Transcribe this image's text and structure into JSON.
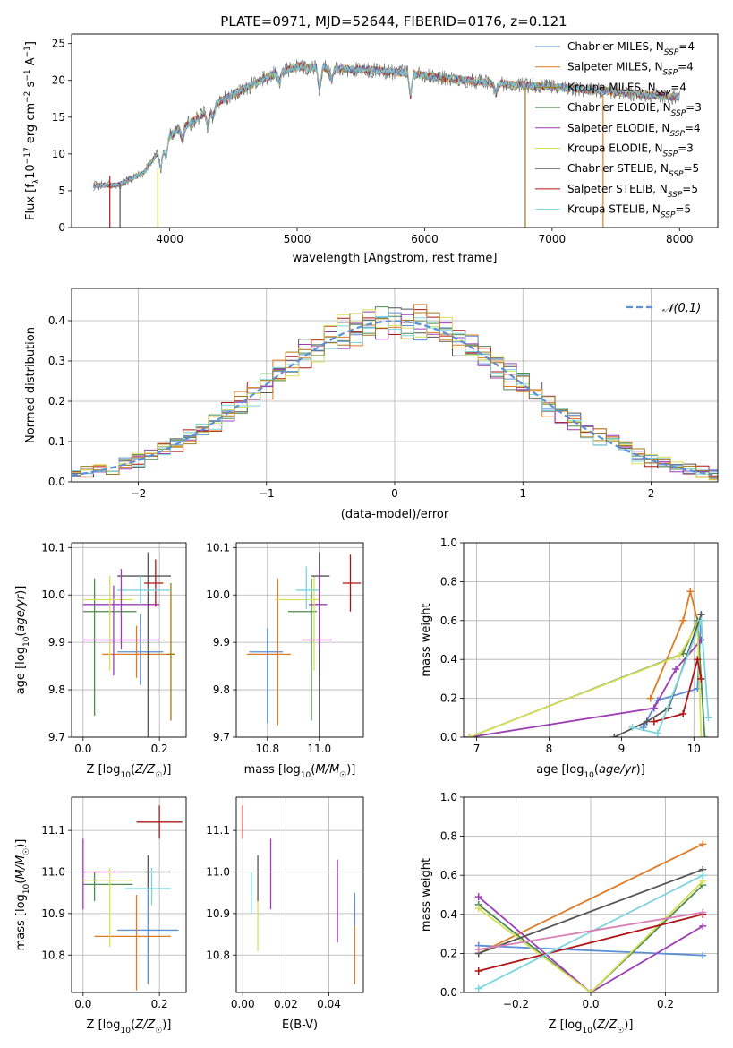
{
  "title": "PLATE=0971, MJD=52644, FIBERID=0176, z=0.121",
  "series": [
    {
      "name": "Chabrier MILES",
      "nssp": "4",
      "color": "#5b8fd6"
    },
    {
      "name": "Salpeter MILES",
      "nssp": "4",
      "color": "#e07b24"
    },
    {
      "name": "Kroupa MILES",
      "nssp": "4",
      "color": "#a07a1a"
    },
    {
      "name": "Chabrier ELODIE",
      "nssp": "3",
      "color": "#4f8a4f"
    },
    {
      "name": "Salpeter ELODIE",
      "nssp": "4",
      "color": "#9c3fb5"
    },
    {
      "name": "Kroupa ELODIE",
      "nssp": "3",
      "color": "#d8e05a"
    },
    {
      "name": "Chabrier STELIB",
      "nssp": "5",
      "color": "#555555"
    },
    {
      "name": "Salpeter STELIB",
      "nssp": "5",
      "color": "#b01515"
    },
    {
      "name": "Kroupa STELIB",
      "nssp": "5",
      "color": "#7ad6dc"
    }
  ],
  "chart_data": [
    {
      "type": "line",
      "id": "spectrum",
      "title": "PLATE=0971, MJD=52644, FIBERID=0176, z=0.121",
      "xlabel": "wavelength [Angstrom, rest frame]",
      "ylabel": "Flux [f_λ 10^-17 erg cm^-2 s^-1 A^-1]",
      "xlim": [
        3230,
        8300
      ],
      "ylim": [
        0,
        26.3
      ],
      "xticks": [
        4000,
        5000,
        6000,
        7000,
        8000
      ],
      "yticks": [
        0,
        5,
        10,
        15,
        20,
        25
      ],
      "grid": false,
      "legend": "right",
      "continuum": {
        "x": [
          3400,
          3600,
          3800,
          4000,
          4200,
          4400,
          4600,
          4800,
          5000,
          5300,
          5600,
          5900,
          6200,
          6500,
          6800,
          7100,
          7400,
          7700,
          8000
        ],
        "y": [
          5.7,
          5.8,
          7.5,
          12.5,
          14.6,
          17.2,
          19.0,
          20.8,
          21.8,
          21.6,
          21.4,
          20.9,
          20.2,
          19.7,
          19.3,
          19.0,
          18.6,
          18.1,
          17.7
        ]
      }
    },
    {
      "type": "histogram",
      "id": "residuals",
      "xlabel": "(data-model)/error",
      "ylabel": "Normed distribution",
      "xlim": [
        -2.52,
        2.52
      ],
      "ylim": [
        0,
        0.48
      ],
      "xticks": [
        -2,
        -1,
        0,
        1,
        2
      ],
      "yticks": [
        0,
        0.1,
        0.2,
        0.3,
        0.4
      ],
      "grid": true,
      "legend": "top-right",
      "reference_curve": {
        "label": "𝒩(0,1)",
        "mean": 0,
        "sigma": 1,
        "color": "#5b8fd6"
      },
      "bin_width": 0.1
    },
    {
      "type": "errorbar",
      "id": "age_vs_Z",
      "xlabel": "Z [log10(Z/Z☉)]",
      "ylabel": "age [log10(age/yr)]",
      "xlim": [
        -0.03,
        0.27
      ],
      "ylim": [
        9.7,
        10.11
      ],
      "xticks": [
        0.0,
        0.2
      ],
      "yticks": [
        9.7,
        9.8,
        9.9,
        10.0,
        10.1
      ],
      "grid": true,
      "points": [
        {
          "x": 0.15,
          "xerr": [
            0.06,
            0.06
          ],
          "y": 9.88,
          "yerr": [
            0.07,
            0.08
          ],
          "c": 0
        },
        {
          "x": 0.14,
          "xerr": [
            0.09,
            0.1
          ],
          "y": 9.875,
          "yerr": [
            0.05,
            0.06
          ],
          "c": 1
        },
        {
          "x": 0.23,
          "xerr": [
            0.01,
            0.01
          ],
          "y": 9.875,
          "yerr": [
            0.14,
            0.15
          ],
          "c": 2
        },
        {
          "x": 0.03,
          "xerr": [
            0.03,
            0.11
          ],
          "y": 9.965,
          "yerr": [
            0.22,
            0.07
          ],
          "c": 3
        },
        {
          "x": 0.08,
          "xerr": [
            0.08,
            0.12
          ],
          "y": 9.98,
          "yerr": [
            0.15,
            0.04
          ],
          "c": 4
        },
        {
          "x": 0.07,
          "xerr": [
            0.07,
            0.06
          ],
          "y": 9.99,
          "yerr": [
            0.15,
            0.05
          ],
          "c": 5
        },
        {
          "x": 0.17,
          "xerr": [
            0.08,
            0.06
          ],
          "y": 10.04,
          "yerr": [
            0.34,
            0.05
          ],
          "c": 6
        },
        {
          "x": 0.19,
          "xerr": [
            0.03,
            0.02
          ],
          "y": 10.025,
          "yerr": [
            0.05,
            0.05
          ],
          "c": 7
        },
        {
          "x": 0.15,
          "xerr": [
            0.06,
            0.08
          ],
          "y": 10.01,
          "yerr": [
            0.03,
            0.03
          ],
          "c": 8
        },
        {
          "x": 0.1,
          "xerr": [
            0.1,
            0.1
          ],
          "y": 9.905,
          "yerr": [
            0.02,
            0.15
          ],
          "c": 4
        }
      ]
    },
    {
      "type": "errorbar",
      "id": "age_vs_mass",
      "xlabel": "mass [log10(M/M☉)]",
      "ylabel": "",
      "xlim": [
        10.68,
        11.17
      ],
      "ylim": [
        9.7,
        10.11
      ],
      "xticks": [
        10.8,
        11.0
      ],
      "yticks": [
        9.7,
        9.8,
        9.9,
        10.0,
        10.1
      ],
      "grid": true,
      "points": [
        {
          "x": 10.8,
          "xerr": [
            0.07,
            0.06
          ],
          "y": 9.88,
          "yerr": [
            0.15,
            0.05
          ],
          "c": 0
        },
        {
          "x": 10.84,
          "xerr": [
            0.12,
            0.05
          ],
          "y": 9.875,
          "yerr": [
            0.15,
            0.16
          ],
          "c": 1
        },
        {
          "x": 10.97,
          "xerr": [
            0.09,
            0.02
          ],
          "y": 9.965,
          "yerr": [
            0.23,
            0.07
          ],
          "c": 3
        },
        {
          "x": 11.0,
          "xerr": [
            0.04,
            0.03
          ],
          "y": 9.98,
          "yerr": [
            0.15,
            0.04
          ],
          "c": 4
        },
        {
          "x": 10.98,
          "xerr": [
            0.15,
            0.02
          ],
          "y": 9.99,
          "yerr": [
            0.15,
            0.05
          ],
          "c": 5
        },
        {
          "x": 11.0,
          "xerr": [
            0.03,
            0.04
          ],
          "y": 10.04,
          "yerr": [
            0.34,
            0.05
          ],
          "c": 6
        },
        {
          "x": 11.12,
          "xerr": [
            0.03,
            0.04
          ],
          "y": 10.025,
          "yerr": [
            0.06,
            0.06
          ],
          "c": 7
        },
        {
          "x": 10.95,
          "xerr": [
            0.04,
            0.05
          ],
          "y": 10.01,
          "yerr": [
            0.04,
            0.05
          ],
          "c": 8
        },
        {
          "x": 11.0,
          "xerr": [
            0.07,
            0.05
          ],
          "y": 9.905,
          "yerr": [
            0.02,
            0.15
          ],
          "c": 4
        }
      ]
    },
    {
      "type": "line",
      "id": "massweight_vs_age",
      "xlabel": "age [log10(age/yr)]",
      "ylabel": "mass weight",
      "xlim": [
        6.82,
        10.33
      ],
      "ylim": [
        0,
        1.0
      ],
      "xticks": [
        7,
        8,
        9,
        10
      ],
      "yticks": [
        0,
        0.2,
        0.4,
        0.6,
        0.8,
        1.0
      ],
      "grid": true,
      "series": [
        {
          "c": 0,
          "x": [
            9.3,
            9.5,
            10.05,
            10.1
          ],
          "y": [
            0.05,
            0.19,
            0.25,
            0.63
          ]
        },
        {
          "c": 1,
          "x": [
            9.4,
            9.85,
            9.95,
            10.05
          ],
          "y": [
            0.2,
            0.6,
            0.75,
            0.6
          ]
        },
        {
          "c": 3,
          "x": [
            6.9,
            9.85,
            10.05,
            10.15
          ],
          "y": [
            0.0,
            0.43,
            0.6,
            0.0
          ]
        },
        {
          "c": 4,
          "x": [
            6.9,
            9.45,
            9.75,
            10.1
          ],
          "y": [
            0.0,
            0.15,
            0.35,
            0.5
          ]
        },
        {
          "c": 5,
          "x": [
            6.9,
            9.8,
            10.05,
            10.1
          ],
          "y": [
            0.0,
            0.42,
            0.58,
            0.0
          ]
        },
        {
          "c": 6,
          "x": [
            8.9,
            9.35,
            9.65,
            10.1
          ],
          "y": [
            0.0,
            0.08,
            0.15,
            0.63
          ]
        },
        {
          "c": 7,
          "x": [
            9.45,
            9.85,
            10.05,
            10.1
          ],
          "y": [
            0.08,
            0.12,
            0.4,
            0.3
          ]
        },
        {
          "c": 8,
          "x": [
            9.15,
            9.5,
            10.1,
            10.2
          ],
          "y": [
            0.05,
            0.02,
            0.6,
            0.1
          ]
        }
      ]
    },
    {
      "type": "errorbar",
      "id": "mass_vs_Z",
      "xlabel": "Z [log10(Z/Z☉)]",
      "ylabel": "mass [log10(M/M☉)]",
      "xlim": [
        -0.03,
        0.27
      ],
      "ylim": [
        10.71,
        11.18
      ],
      "xticks": [
        0.0,
        0.2
      ],
      "yticks": [
        10.8,
        10.9,
        11.0,
        11.1
      ],
      "grid": true,
      "points": [
        {
          "x": 0.17,
          "xerr": [
            0.08,
            0.08
          ],
          "y": 10.86,
          "yerr": [
            0.13,
            0.1
          ],
          "c": 0
        },
        {
          "x": 0.14,
          "xerr": [
            0.11,
            0.09
          ],
          "y": 10.845,
          "yerr": [
            0.13,
            0.1
          ],
          "c": 1
        },
        {
          "x": 0.03,
          "xerr": [
            0.03,
            0.1
          ],
          "y": 10.97,
          "yerr": [
            0.04,
            0.03
          ],
          "c": 3
        },
        {
          "x": 0.0,
          "xerr": [
            0.0,
            0.09
          ],
          "y": 11.0,
          "yerr": [
            0.09,
            0.08
          ],
          "c": 4
        },
        {
          "x": 0.07,
          "xerr": [
            0.07,
            0.06
          ],
          "y": 10.98,
          "yerr": [
            0.16,
            0.03
          ],
          "c": 5
        },
        {
          "x": 0.17,
          "xerr": [
            0.08,
            0.06
          ],
          "y": 11.0,
          "yerr": [
            0.04,
            0.04
          ],
          "c": 6
        },
        {
          "x": 0.2,
          "xerr": [
            0.06,
            0.06
          ],
          "y": 11.12,
          "yerr": [
            0.04,
            0.04
          ],
          "c": 7
        },
        {
          "x": 0.18,
          "xerr": [
            0.07,
            0.05
          ],
          "y": 10.96,
          "yerr": [
            0.04,
            0.05
          ],
          "c": 8
        }
      ]
    },
    {
      "type": "errorbar",
      "id": "mass_vs_ebv",
      "xlabel": "E(B-V)",
      "ylabel": "",
      "xlim": [
        -0.003,
        0.056
      ],
      "ylim": [
        10.71,
        11.18
      ],
      "xticks": [
        0.0,
        0.02,
        0.04
      ],
      "yticks": [
        10.8,
        10.9,
        11.0,
        11.1
      ],
      "grid": true,
      "points": [
        {
          "x": 0.0,
          "y": 11.12,
          "yerr": [
            0.04,
            0.04
          ],
          "c": 7
        },
        {
          "x": 0.004,
          "y": 10.95,
          "yerr": [
            0.05,
            0.05
          ],
          "c": 8
        },
        {
          "x": 0.007,
          "y": 10.97,
          "yerr": [
            0.04,
            0.07
          ],
          "c": 6
        },
        {
          "x": 0.007,
          "y": 10.87,
          "yerr": [
            0.06,
            0.06
          ],
          "c": 5
        },
        {
          "x": 0.013,
          "y": 11.0,
          "yerr": [
            0.09,
            0.08
          ],
          "c": 4
        },
        {
          "x": 0.044,
          "y": 10.93,
          "yerr": [
            0.1,
            0.1
          ],
          "c": 4
        },
        {
          "x": 0.052,
          "y": 10.84,
          "yerr": [
            0.11,
            0.1
          ],
          "c": 1
        },
        {
          "x": 0.052,
          "y": 10.91,
          "yerr": [
            0.04,
            0.04
          ],
          "c": 0
        }
      ]
    },
    {
      "type": "line",
      "id": "massweight_vs_Z",
      "xlabel": "Z [log10(Z/Z☉)]",
      "ylabel": "mass weight",
      "xlim": [
        -0.34,
        0.34
      ],
      "ylim": [
        0,
        1.0
      ],
      "xticks": [
        -0.2,
        0.0,
        0.2
      ],
      "yticks": [
        0,
        0.2,
        0.4,
        0.6,
        0.8,
        1.0
      ],
      "grid": true,
      "series": [
        {
          "c": 0,
          "x": [
            -0.3,
            0.3
          ],
          "y": [
            0.24,
            0.19
          ]
        },
        {
          "c": 1,
          "x": [
            -0.3,
            0.3
          ],
          "y": [
            0.2,
            0.76
          ]
        },
        {
          "c": 3,
          "x": [
            -0.3,
            0.0,
            0.3
          ],
          "y": [
            0.45,
            0.0,
            0.55
          ]
        },
        {
          "c": 4,
          "x": [
            -0.3,
            0.0,
            0.3
          ],
          "y": [
            0.49,
            0.0,
            0.34
          ]
        },
        {
          "c": 5,
          "x": [
            -0.3,
            0.0,
            0.3
          ],
          "y": [
            0.43,
            0.0,
            0.57
          ]
        },
        {
          "c": 6,
          "x": [
            -0.3,
            0.3
          ],
          "y": [
            0.2,
            0.63
          ]
        },
        {
          "c": 7,
          "x": [
            -0.3,
            0.3
          ],
          "y": [
            0.11,
            0.4
          ]
        },
        {
          "c": 8,
          "x": [
            -0.3,
            0.3
          ],
          "y": [
            0.02,
            0.6
          ]
        },
        {
          "c": "#d97fb5",
          "x": [
            -0.3,
            0.3
          ],
          "y": [
            0.22,
            0.41
          ]
        }
      ]
    }
  ]
}
